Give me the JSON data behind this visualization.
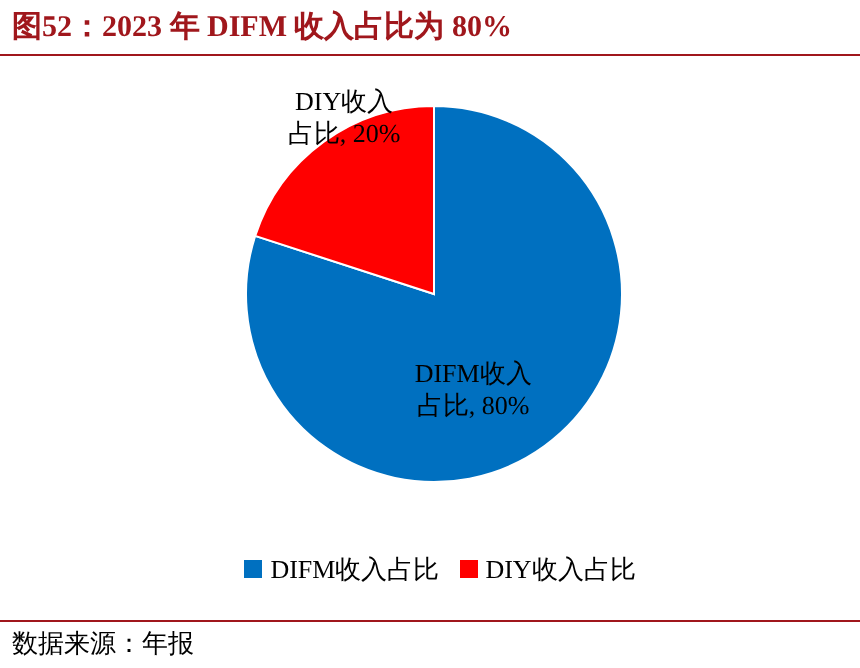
{
  "chart_data": {
    "type": "pie",
    "title": "图52：2023 年 DIFM 收入占比为 80%",
    "categories": [
      "DIFM收入占比",
      "DIY收入占比"
    ],
    "values": [
      80,
      20
    ],
    "colors": [
      "#0070c0",
      "#ff0000"
    ],
    "value_labels": [
      "DIFM收入占比, 80%",
      "DIY收入占比, 20%"
    ],
    "legend": "bottom",
    "annotations": [
      "数据来源：年报"
    ]
  }
}
